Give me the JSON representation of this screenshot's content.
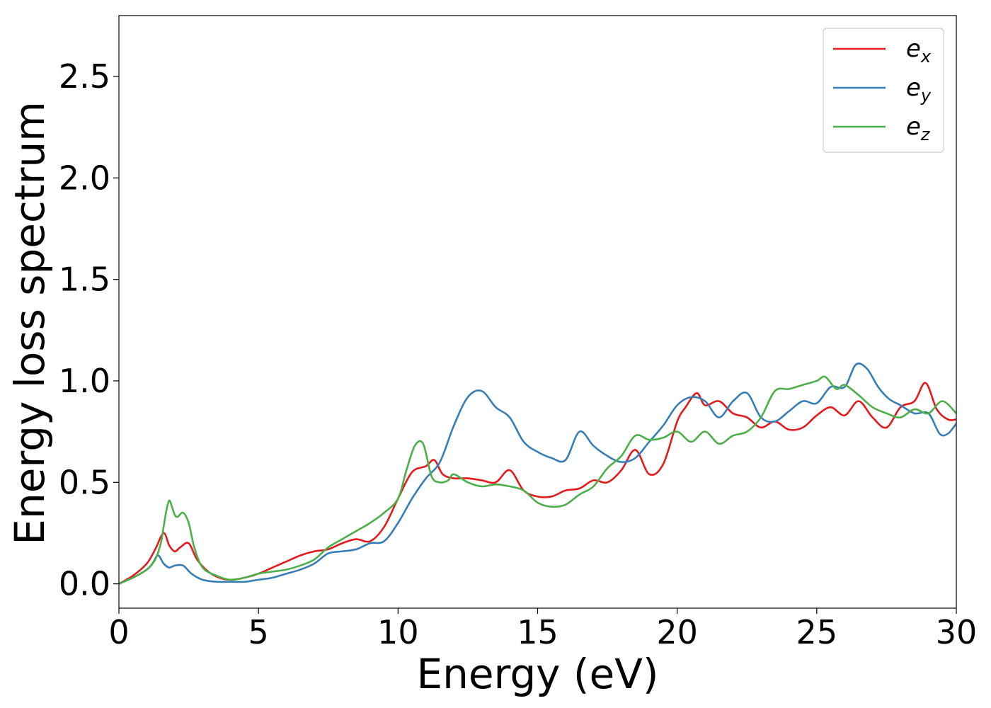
{
  "chart_data": {
    "type": "line",
    "title": "",
    "xlabel": "Energy (eV)",
    "ylabel": "Energy loss spectrum",
    "xlim": [
      0,
      30
    ],
    "ylim": [
      -0.12,
      2.8
    ],
    "xticks": [
      0,
      5,
      10,
      15,
      20,
      25,
      30
    ],
    "xtick_labels": [
      "0",
      "5",
      "10",
      "15",
      "20",
      "25",
      "30"
    ],
    "yticks": [
      0.0,
      0.5,
      1.0,
      1.5,
      2.0,
      2.5
    ],
    "ytick_labels": [
      "0.0",
      "0.5",
      "1.0",
      "1.5",
      "2.0",
      "2.5"
    ],
    "grid": false,
    "legend_position": "top-right",
    "series": [
      {
        "name": "e_x",
        "label_base": "e",
        "label_sub": "x",
        "color": "#e41a1c",
        "x": [
          0,
          0.5,
          1.0,
          1.3,
          1.6,
          1.8,
          2.0,
          2.2,
          2.5,
          2.8,
          3.2,
          3.6,
          4.0,
          4.5,
          5.0,
          5.5,
          6.0,
          6.5,
          7.0,
          7.5,
          8.0,
          8.5,
          9.0,
          9.5,
          10.0,
          10.5,
          11.0,
          11.3,
          11.6,
          12.0,
          12.5,
          13.0,
          13.5,
          14.0,
          14.5,
          15.0,
          15.5,
          16.0,
          16.5,
          17.0,
          17.5,
          18.0,
          18.5,
          19.0,
          19.5,
          20.0,
          20.3,
          20.7,
          21.0,
          21.5,
          22.0,
          22.5,
          23.0,
          23.5,
          24.0,
          24.5,
          25.0,
          25.5,
          26.0,
          26.5,
          27.0,
          27.5,
          28.0,
          28.5,
          28.9,
          29.3,
          29.7,
          30.0
        ],
        "values": [
          0.0,
          0.04,
          0.1,
          0.17,
          0.25,
          0.19,
          0.16,
          0.18,
          0.2,
          0.12,
          0.06,
          0.03,
          0.02,
          0.03,
          0.05,
          0.08,
          0.11,
          0.14,
          0.16,
          0.17,
          0.2,
          0.22,
          0.21,
          0.28,
          0.42,
          0.55,
          0.58,
          0.61,
          0.54,
          0.52,
          0.52,
          0.51,
          0.5,
          0.56,
          0.46,
          0.43,
          0.43,
          0.46,
          0.47,
          0.51,
          0.5,
          0.56,
          0.66,
          0.54,
          0.59,
          0.8,
          0.87,
          0.94,
          0.88,
          0.9,
          0.84,
          0.82,
          0.77,
          0.8,
          0.76,
          0.77,
          0.83,
          0.87,
          0.83,
          0.9,
          0.82,
          0.77,
          0.87,
          0.9,
          0.99,
          0.86,
          0.81,
          0.81
        ]
      },
      {
        "name": "e_y",
        "label_base": "e",
        "label_sub": "y",
        "color": "#377eb8",
        "x": [
          0,
          0.5,
          1.0,
          1.2,
          1.4,
          1.6,
          1.8,
          2.0,
          2.3,
          2.6,
          3.0,
          3.5,
          4.0,
          4.5,
          5.0,
          5.5,
          6.0,
          6.5,
          7.0,
          7.5,
          8.0,
          8.5,
          9.0,
          9.5,
          10.0,
          10.5,
          11.0,
          11.5,
          12.0,
          12.5,
          13.0,
          13.5,
          14.0,
          14.5,
          15.0,
          15.5,
          16.0,
          16.5,
          17.0,
          17.5,
          18.0,
          18.5,
          19.0,
          19.5,
          20.0,
          20.5,
          21.0,
          21.5,
          22.0,
          22.5,
          23.0,
          23.5,
          24.0,
          24.5,
          25.0,
          25.5,
          26.0,
          26.4,
          26.8,
          27.2,
          27.6,
          28.0,
          28.5,
          29.0,
          29.4,
          29.7,
          30.0
        ],
        "values": [
          0.0,
          0.03,
          0.07,
          0.1,
          0.14,
          0.1,
          0.08,
          0.09,
          0.09,
          0.05,
          0.02,
          0.01,
          0.01,
          0.01,
          0.02,
          0.03,
          0.05,
          0.07,
          0.1,
          0.15,
          0.16,
          0.17,
          0.2,
          0.21,
          0.3,
          0.42,
          0.52,
          0.6,
          0.78,
          0.92,
          0.95,
          0.87,
          0.82,
          0.7,
          0.65,
          0.62,
          0.61,
          0.75,
          0.68,
          0.63,
          0.6,
          0.62,
          0.7,
          0.78,
          0.88,
          0.92,
          0.9,
          0.82,
          0.9,
          0.94,
          0.82,
          0.8,
          0.85,
          0.9,
          0.89,
          0.97,
          0.97,
          1.08,
          1.06,
          0.97,
          0.91,
          0.88,
          0.84,
          0.84,
          0.74,
          0.74,
          0.79
        ]
      },
      {
        "name": "e_z",
        "label_base": "e",
        "label_sub": "z",
        "color": "#4daf4a",
        "x": [
          0,
          0.5,
          1.0,
          1.3,
          1.5,
          1.6,
          1.7,
          1.8,
          1.9,
          2.0,
          2.1,
          2.3,
          2.5,
          2.7,
          3.0,
          3.5,
          4.0,
          4.5,
          5.0,
          5.5,
          6.0,
          6.5,
          7.0,
          7.5,
          8.0,
          8.5,
          9.0,
          9.5,
          10.0,
          10.3,
          10.6,
          10.9,
          11.2,
          11.5,
          11.8,
          12.0,
          12.5,
          13.0,
          13.5,
          14.0,
          14.5,
          15.0,
          15.5,
          16.0,
          16.5,
          17.0,
          17.5,
          18.0,
          18.5,
          19.0,
          19.5,
          20.0,
          20.5,
          21.0,
          21.5,
          22.0,
          22.5,
          23.0,
          23.5,
          24.0,
          24.5,
          25.0,
          25.3,
          25.7,
          26.0,
          26.5,
          27.0,
          27.5,
          28.0,
          28.5,
          29.0,
          29.5,
          30.0
        ],
        "values": [
          0.0,
          0.03,
          0.07,
          0.12,
          0.2,
          0.28,
          0.36,
          0.41,
          0.38,
          0.34,
          0.33,
          0.35,
          0.3,
          0.18,
          0.08,
          0.04,
          0.02,
          0.03,
          0.05,
          0.06,
          0.07,
          0.09,
          0.12,
          0.18,
          0.22,
          0.26,
          0.3,
          0.35,
          0.42,
          0.56,
          0.68,
          0.69,
          0.53,
          0.5,
          0.51,
          0.54,
          0.5,
          0.48,
          0.49,
          0.48,
          0.46,
          0.4,
          0.38,
          0.39,
          0.44,
          0.48,
          0.57,
          0.63,
          0.73,
          0.71,
          0.72,
          0.75,
          0.7,
          0.75,
          0.69,
          0.73,
          0.75,
          0.82,
          0.95,
          0.96,
          0.98,
          1.0,
          1.02,
          0.96,
          0.98,
          0.93,
          0.87,
          0.84,
          0.82,
          0.86,
          0.84,
          0.9,
          0.84
        ]
      }
    ]
  }
}
